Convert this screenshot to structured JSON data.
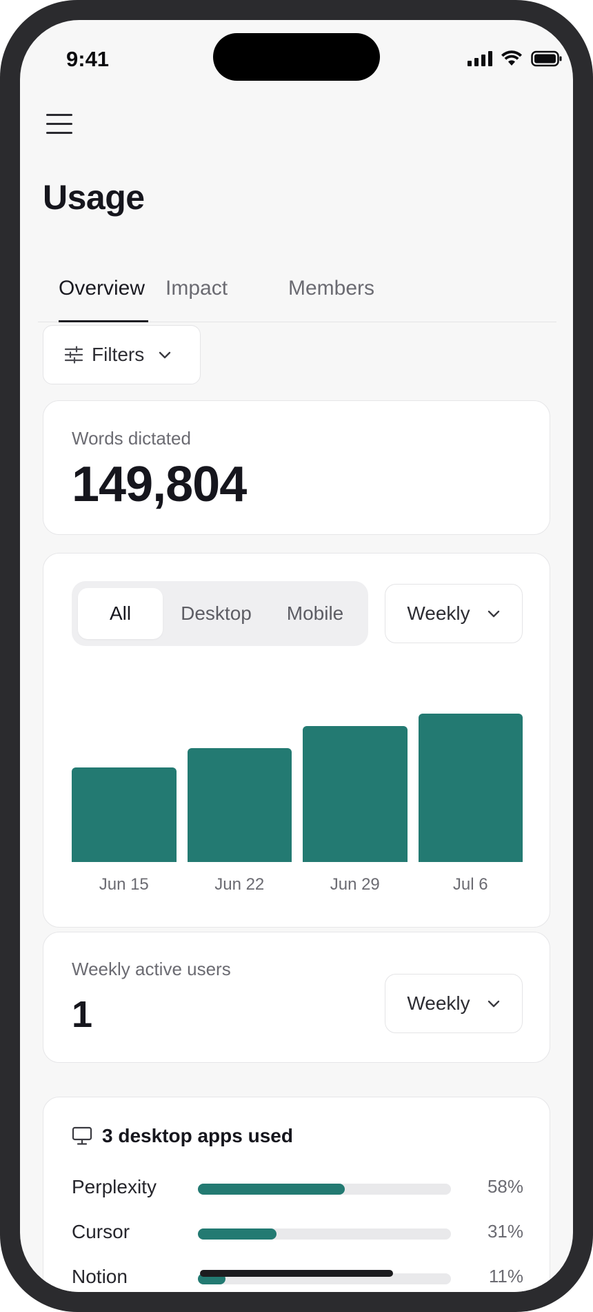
{
  "status_bar": {
    "time": "9:41"
  },
  "page": {
    "title": "Usage"
  },
  "tabs": [
    {
      "label": "Overview",
      "active": true
    },
    {
      "label": "Impact",
      "active": false
    },
    {
      "label": "Members",
      "active": false
    }
  ],
  "filters": {
    "label": "Filters"
  },
  "words_card": {
    "label": "Words dictated",
    "value": "149,804"
  },
  "chart_card": {
    "segments": [
      {
        "label": "All",
        "active": true
      },
      {
        "label": "Desktop",
        "active": false
      },
      {
        "label": "Mobile",
        "active": false
      }
    ],
    "period": "Weekly"
  },
  "chart_data": {
    "type": "bar",
    "categories": [
      "Jun 15",
      "Jun 22",
      "Jun 29",
      "Jul 6"
    ],
    "values": [
      137,
      165,
      197,
      215
    ],
    "ylim": [
      0,
      215
    ],
    "grid": false,
    "color": "#237a72"
  },
  "wau_card": {
    "label": "Weekly active users",
    "value": "1",
    "period": "Weekly"
  },
  "apps_card": {
    "title": "3 desktop apps used",
    "apps": [
      {
        "name": "Perplexity",
        "percent_label": "58%",
        "fraction": 0.58
      },
      {
        "name": "Cursor",
        "percent_label": "31%",
        "fraction": 0.31
      },
      {
        "name": "Notion",
        "percent_label": "11%",
        "fraction": 0.11
      }
    ]
  },
  "colors": {
    "accent": "#237a72",
    "background": "#f7f7f7"
  }
}
